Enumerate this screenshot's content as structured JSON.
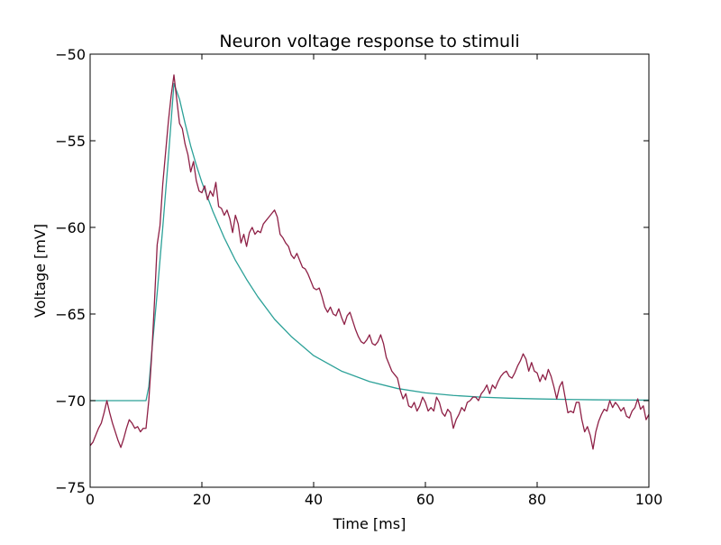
{
  "chart_data": {
    "type": "line",
    "title": "Neuron voltage response to stimuli",
    "xlabel": "Time [ms]",
    "ylabel": "Voltage [mV]",
    "xlim": [
      0,
      100
    ],
    "ylim": [
      -75,
      -50
    ],
    "xticks": [
      0,
      20,
      40,
      60,
      80,
      100
    ],
    "xtick_labels": [
      "0",
      "20",
      "40",
      "60",
      "80",
      "100"
    ],
    "yticks": [
      -75,
      -70,
      -65,
      -60,
      -55,
      -50
    ],
    "ytick_labels": [
      "−75",
      "−70",
      "−65",
      "−60",
      "−55",
      "−50"
    ],
    "grid": false,
    "legend": false,
    "series": [
      {
        "color": "#2ca198",
        "style": "smooth",
        "x": [
          0,
          10,
          10.5,
          11,
          12,
          13,
          14,
          15,
          16,
          17,
          18,
          19,
          20,
          22,
          24,
          26,
          28,
          30,
          33,
          36,
          40,
          45,
          50,
          55,
          60,
          65,
          70,
          75,
          80,
          85,
          90,
          95,
          100
        ],
        "y": [
          -70,
          -70,
          -69.2,
          -67.3,
          -63.8,
          -60.0,
          -56.0,
          -51.7,
          -52.6,
          -54.0,
          -55.3,
          -56.4,
          -57.4,
          -59.1,
          -60.6,
          -61.9,
          -63.0,
          -64.0,
          -65.3,
          -66.3,
          -67.4,
          -68.3,
          -68.9,
          -69.3,
          -69.55,
          -69.7,
          -69.8,
          -69.86,
          -69.9,
          -69.93,
          -69.95,
          -69.96,
          -69.97
        ]
      },
      {
        "color": "#8e2046",
        "style": "noisy",
        "x": [
          0,
          0.5,
          1,
          1.5,
          2,
          2.5,
          3,
          3.5,
          4,
          4.5,
          5,
          5.5,
          6,
          6.5,
          7,
          7.5,
          8,
          8.5,
          9,
          9.5,
          10,
          10.5,
          11,
          11.5,
          12,
          12.5,
          13,
          13.5,
          14,
          14.5,
          15,
          15.5,
          16,
          16.5,
          17,
          17.5,
          18,
          18.5,
          19,
          19.5,
          20,
          20.5,
          21,
          21.5,
          22,
          22.5,
          23,
          23.5,
          24,
          24.5,
          25,
          25.5,
          26,
          26.5,
          27,
          27.5,
          28,
          28.5,
          29,
          29.5,
          30,
          30.5,
          31,
          31.5,
          32,
          32.5,
          33,
          33.5,
          34,
          34.5,
          35,
          35.5,
          36,
          36.5,
          37,
          37.5,
          38,
          38.5,
          39,
          39.5,
          40,
          40.5,
          41,
          41.5,
          42,
          42.5,
          43,
          43.5,
          44,
          44.5,
          45,
          45.5,
          46,
          46.5,
          47,
          47.5,
          48,
          48.5,
          49,
          49.5,
          50,
          50.5,
          51,
          51.5,
          52,
          52.5,
          53,
          53.5,
          54,
          54.5,
          55,
          55.5,
          56,
          56.5,
          57,
          57.5,
          58,
          58.5,
          59,
          59.5,
          60,
          60.5,
          61,
          61.5,
          62,
          62.5,
          63,
          63.5,
          64,
          64.5,
          65,
          65.5,
          66,
          66.5,
          67,
          67.5,
          68,
          68.5,
          69,
          69.5,
          70,
          70.5,
          71,
          71.5,
          72,
          72.5,
          73,
          73.5,
          74,
          74.5,
          75,
          75.5,
          76,
          76.5,
          77,
          77.5,
          78,
          78.5,
          79,
          79.5,
          80,
          80.5,
          81,
          81.5,
          82,
          82.5,
          83,
          83.5,
          84,
          84.5,
          85,
          85.5,
          86,
          86.5,
          87,
          87.5,
          88,
          88.5,
          89,
          89.5,
          90,
          90.5,
          91,
          91.5,
          92,
          92.5,
          93,
          93.5,
          94,
          94.5,
          95,
          95.5,
          96,
          96.5,
          97,
          97.5,
          98,
          98.5,
          99,
          99.5,
          100
        ],
        "y": [
          -72.6,
          -72.4,
          -72.0,
          -71.6,
          -71.3,
          -70.7,
          -70.0,
          -70.7,
          -71.3,
          -71.8,
          -72.3,
          -72.7,
          -72.2,
          -71.6,
          -71.1,
          -71.3,
          -71.6,
          -71.5,
          -71.8,
          -71.6,
          -71.6,
          -70.0,
          -67.5,
          -64.4,
          -61.0,
          -59.9,
          -57.5,
          -55.7,
          -53.9,
          -52.4,
          -51.2,
          -52.6,
          -54.0,
          -54.3,
          -55.2,
          -55.8,
          -56.8,
          -56.2,
          -57.3,
          -57.9,
          -58.0,
          -57.6,
          -58.4,
          -57.9,
          -58.2,
          -57.4,
          -58.8,
          -58.9,
          -59.3,
          -59.0,
          -59.5,
          -60.3,
          -59.3,
          -59.8,
          -60.9,
          -60.4,
          -61.1,
          -60.3,
          -60.0,
          -60.4,
          -60.2,
          -60.3,
          -59.8,
          -59.6,
          -59.4,
          -59.2,
          -59.0,
          -59.4,
          -60.4,
          -60.6,
          -60.9,
          -61.1,
          -61.6,
          -61.8,
          -61.5,
          -61.9,
          -62.3,
          -62.4,
          -62.7,
          -63.1,
          -63.5,
          -63.6,
          -63.5,
          -64.0,
          -64.6,
          -64.9,
          -64.6,
          -65.0,
          -65.1,
          -64.7,
          -65.2,
          -65.6,
          -65.1,
          -64.9,
          -65.4,
          -65.9,
          -66.3,
          -66.6,
          -66.7,
          -66.5,
          -66.2,
          -66.7,
          -66.8,
          -66.6,
          -66.2,
          -66.7,
          -67.5,
          -67.9,
          -68.3,
          -68.5,
          -68.7,
          -69.4,
          -69.9,
          -69.6,
          -70.3,
          -70.4,
          -70.1,
          -70.6,
          -70.3,
          -69.8,
          -70.1,
          -70.6,
          -70.4,
          -70.6,
          -69.8,
          -70.1,
          -70.7,
          -70.9,
          -70.5,
          -70.7,
          -71.6,
          -71.1,
          -70.8,
          -70.4,
          -70.6,
          -70.1,
          -70.0,
          -69.8,
          -69.8,
          -70.0,
          -69.6,
          -69.4,
          -69.1,
          -69.6,
          -69.1,
          -69.3,
          -68.9,
          -68.6,
          -68.4,
          -68.3,
          -68.6,
          -68.7,
          -68.4,
          -68.0,
          -67.7,
          -67.3,
          -67.6,
          -68.3,
          -67.8,
          -68.3,
          -68.4,
          -68.9,
          -68.5,
          -68.8,
          -68.2,
          -68.6,
          -69.2,
          -69.9,
          -69.2,
          -68.9,
          -69.8,
          -70.7,
          -70.6,
          -70.7,
          -70.1,
          -70.1,
          -71.1,
          -71.8,
          -71.5,
          -72.0,
          -72.8,
          -71.8,
          -71.2,
          -70.8,
          -70.5,
          -70.6,
          -70.0,
          -70.4,
          -70.1,
          -70.3,
          -70.6,
          -70.4,
          -70.9,
          -71.0,
          -70.6,
          -70.4,
          -69.9,
          -70.5,
          -70.3,
          -71.1,
          -70.8
        ]
      }
    ]
  }
}
